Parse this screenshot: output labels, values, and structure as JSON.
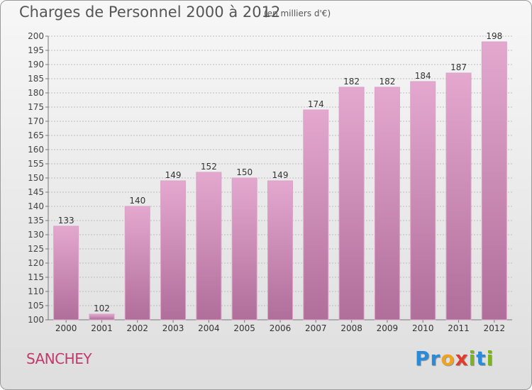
{
  "title": "Charges de Personnel 2000 à 2012",
  "subtitle": "(en milliers d'€)",
  "commune": "SANCHEY",
  "logo": {
    "text": "Proxiti",
    "letters": [
      {
        "ch": "P",
        "color": "#2a8bd8"
      },
      {
        "ch": "r",
        "color": "#2a8bd8"
      },
      {
        "ch": "o",
        "color": "#f0a321"
      },
      {
        "ch": "x",
        "color": "#e23b2e"
      },
      {
        "ch": "i",
        "color": "#7ab51d"
      },
      {
        "ch": "t",
        "color": "#2a8bd8"
      },
      {
        "ch": "i",
        "color": "#7ab51d"
      }
    ]
  },
  "colors": {
    "bar_top": "#e4a8cf",
    "bar_bottom": "#b06e9a",
    "commune": "#c23a6b"
  },
  "chart_data": {
    "type": "bar",
    "title": "Charges de Personnel 2000 à 2012",
    "subtitle": "(en milliers d'€)",
    "categories": [
      "2000",
      "2001",
      "2002",
      "2003",
      "2004",
      "2005",
      "2006",
      "2007",
      "2008",
      "2009",
      "2010",
      "2011",
      "2012"
    ],
    "values": [
      133,
      102,
      140,
      149,
      152,
      150,
      149,
      174,
      182,
      182,
      184,
      187,
      198
    ],
    "ylim": [
      100,
      200
    ],
    "yticks": [
      100,
      105,
      110,
      115,
      120,
      125,
      130,
      135,
      140,
      145,
      150,
      155,
      160,
      165,
      170,
      175,
      180,
      185,
      190,
      195,
      200
    ],
    "grid": true,
    "xlabel": "",
    "ylabel": ""
  }
}
